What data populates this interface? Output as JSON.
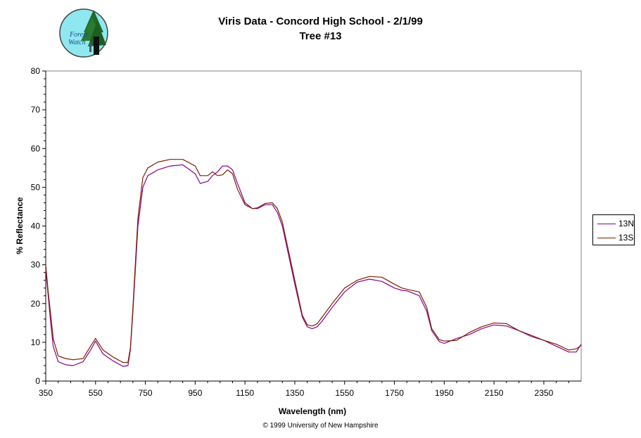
{
  "logo": {
    "line1": "Forest",
    "line2": "Watch"
  },
  "copyright": "© 1999 University of New Hampshire",
  "colors": {
    "13N": "#8b008b",
    "13S": "#7b2000",
    "frame": "#808080"
  },
  "chart_data": {
    "type": "line",
    "title": "Viris Data - Concord High School - 2/1/99",
    "subtitle": "Tree #13",
    "xlabel": "Wavelength (nm)",
    "ylabel": "% Reflectance",
    "xlim": [
      350,
      2500
    ],
    "ylim": [
      0,
      80
    ],
    "xticks": [
      "350",
      "550",
      "750",
      "950",
      "1150",
      "1350",
      "1550",
      "1750",
      "1950",
      "2150",
      "2350"
    ],
    "yticks": [
      "0",
      "10",
      "20",
      "30",
      "40",
      "50",
      "60",
      "70",
      "80"
    ],
    "grid": false,
    "legend_position": "right",
    "series": [
      {
        "name": "13N",
        "x": [
          350,
          360,
          370,
          380,
          400,
          430,
          460,
          500,
          530,
          550,
          560,
          580,
          620,
          660,
          680,
          690,
          700,
          720,
          740,
          760,
          800,
          850,
          900,
          950,
          970,
          1000,
          1020,
          1040,
          1060,
          1080,
          1100,
          1120,
          1150,
          1180,
          1200,
          1230,
          1260,
          1280,
          1300,
          1350,
          1380,
          1400,
          1420,
          1440,
          1460,
          1500,
          1550,
          1600,
          1650,
          1700,
          1750,
          1780,
          1800,
          1850,
          1880,
          1900,
          1930,
          1950,
          2000,
          2050,
          2100,
          2150,
          2200,
          2250,
          2300,
          2350,
          2400,
          2450,
          2480,
          2500
        ],
        "y": [
          29,
          22,
          15,
          9,
          5,
          4.2,
          4.0,
          5,
          8,
          10.3,
          9.2,
          7,
          5.2,
          3.8,
          4.0,
          8,
          18,
          40,
          50,
          53,
          54.5,
          55.5,
          55.8,
          53.5,
          51,
          51.5,
          53,
          54,
          55.5,
          55.5,
          54.5,
          51,
          46,
          44.5,
          44.5,
          45.5,
          45.5,
          43.5,
          40,
          25,
          16.5,
          14,
          13.5,
          14,
          15.5,
          19,
          23,
          25.5,
          26.3,
          25.7,
          24,
          23.4,
          23.3,
          22,
          18,
          13,
          10.2,
          9.7,
          11,
          12,
          13.5,
          14.5,
          14.2,
          13,
          11.5,
          10.5,
          9,
          7.5,
          7.5,
          9.5
        ]
      },
      {
        "name": "13S",
        "x": [
          350,
          360,
          370,
          380,
          400,
          430,
          460,
          500,
          530,
          550,
          560,
          580,
          620,
          660,
          680,
          690,
          700,
          720,
          740,
          760,
          800,
          850,
          900,
          950,
          970,
          1000,
          1020,
          1040,
          1060,
          1080,
          1100,
          1120,
          1150,
          1180,
          1200,
          1230,
          1260,
          1280,
          1300,
          1350,
          1380,
          1400,
          1420,
          1440,
          1460,
          1500,
          1550,
          1600,
          1650,
          1700,
          1750,
          1780,
          1800,
          1850,
          1880,
          1900,
          1930,
          1950,
          2000,
          2050,
          2100,
          2150,
          2200,
          2250,
          2300,
          2350,
          2400,
          2450,
          2480,
          2500
        ],
        "y": [
          30,
          23,
          17,
          11,
          6.5,
          5.8,
          5.5,
          5.8,
          9,
          11,
          10,
          8,
          6.2,
          4.8,
          4.8,
          8.5,
          19,
          42,
          52.5,
          55,
          56.5,
          57.2,
          57.2,
          55.5,
          53,
          53,
          54,
          53,
          53.2,
          54.5,
          53.5,
          49.5,
          45.5,
          44.5,
          44.7,
          45.8,
          46,
          44.5,
          41,
          26,
          17,
          14.5,
          14.2,
          14.8,
          16.5,
          20,
          24,
          26,
          27,
          26.8,
          25,
          24,
          23.7,
          23,
          19,
          13.5,
          10.7,
          10.3,
          10.5,
          12.5,
          14,
          15,
          14.8,
          13,
          11.8,
          10.5,
          9.5,
          8,
          8.3,
          9.2
        ]
      }
    ]
  }
}
